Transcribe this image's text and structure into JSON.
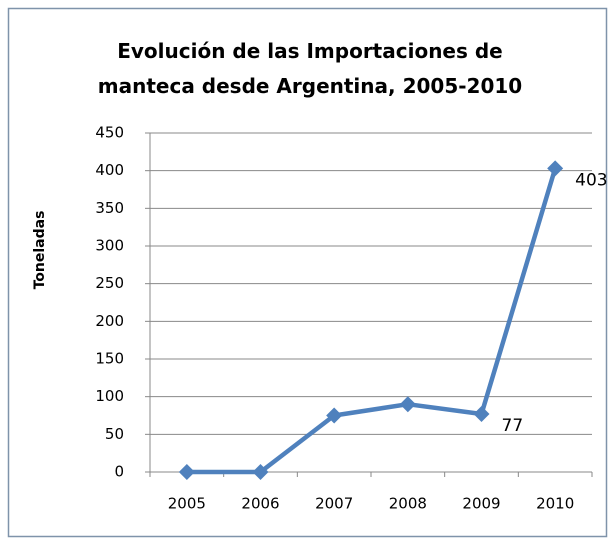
{
  "chart_data": {
    "type": "line",
    "title": "Evolución de las Importaciones de manteca desde Argentina, 2005-2010",
    "y_label": "Toneladas",
    "categories": [
      "2005",
      "2006",
      "2007",
      "2008",
      "2009",
      "2010"
    ],
    "series": [
      {
        "name": "Toneladas",
        "color": "#4f81bd",
        "values": [
          0,
          0,
          75,
          90,
          77,
          403
        ],
        "value_labels": [
          null,
          null,
          null,
          null,
          "77",
          "403"
        ]
      }
    ],
    "ylim": [
      0,
      450
    ],
    "yticks": [
      0,
      50,
      100,
      150,
      200,
      250,
      300,
      350,
      400,
      450
    ],
    "grid": true
  }
}
